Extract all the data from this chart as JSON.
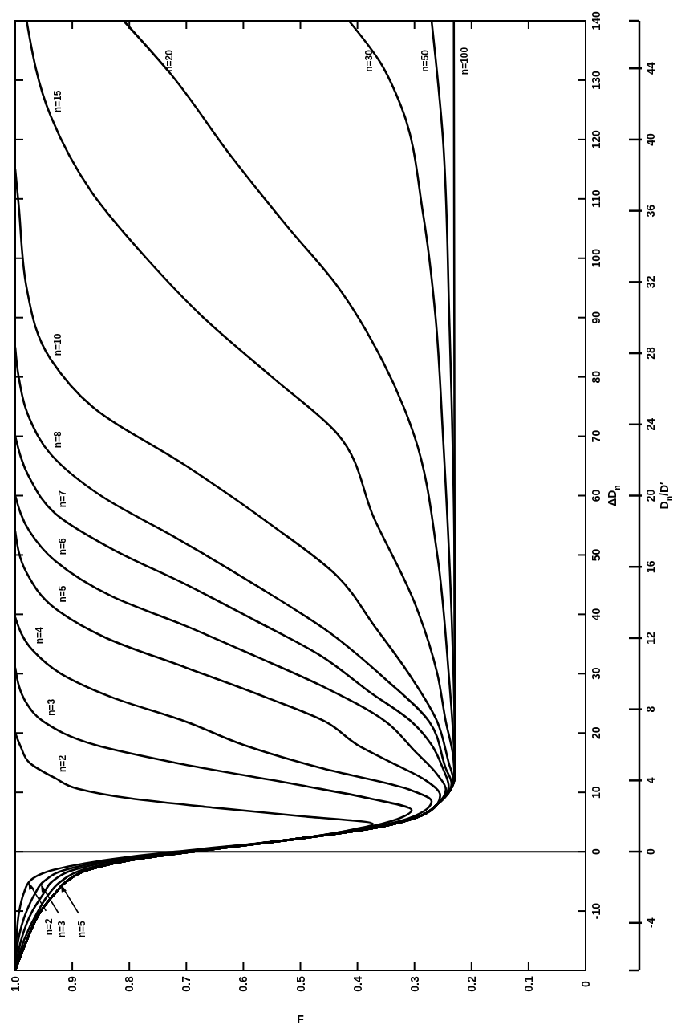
{
  "chart_data": {
    "type": "line",
    "xlabel": "F",
    "ylabel": "ΔD$_{n}$",
    "y2label": "D$_{n}$/D′",
    "xlim": [
      1,
      0
    ],
    "xticks": [
      {
        "value": 1,
        "label": "1.0"
      },
      0.9,
      0.8,
      0.7,
      0.6,
      0.5,
      0.4,
      0.3,
      0.2,
      0.1,
      0
    ],
    "ylim": [
      -20,
      140
    ],
    "yticks": [
      -10,
      0,
      10,
      20,
      30,
      40,
      50,
      60,
      70,
      80,
      90,
      100,
      110,
      120,
      130,
      140
    ],
    "y2lim": [
      -6.67,
      46.67
    ],
    "y2ticks": [
      -4,
      0,
      4,
      8,
      12,
      16,
      20,
      24,
      28,
      32,
      36,
      40,
      44
    ],
    "ref_lines": [
      {
        "axis": "y",
        "value": 0,
        "color": "#000000"
      }
    ],
    "annotations": [
      {
        "text": "n=2",
        "x": 0.977,
        "y": -5.1
      },
      {
        "text": "n=3",
        "x": 0.955,
        "y": -5.5
      },
      {
        "text": "n=5",
        "x": 0.92,
        "y": -5.5
      }
    ],
    "series": [
      {
        "name": "n=2",
        "color": "#000000",
        "values": [
          -20,
          -15,
          -10,
          -7,
          -5,
          -3,
          -1,
          0,
          2,
          3.5,
          4.7,
          6,
          7.4,
          9,
          10.6,
          12.4,
          15,
          17.6,
          20
        ],
        "x": [
          1,
          0.998,
          0.993,
          0.985,
          0.975,
          0.93,
          0.81,
          0.72,
          0.52,
          0.42,
          0.373,
          0.5,
          0.65,
          0.8,
          0.89,
          0.93,
          0.975,
          0.99,
          1
        ]
      },
      {
        "name": "n=3",
        "color": "#000000",
        "values": [
          -20,
          -15,
          -10,
          -7,
          -5,
          -3,
          -1,
          0,
          2,
          4,
          5.5,
          7,
          9,
          11.2,
          15,
          18,
          21.9,
          25,
          31
        ],
        "x": [
          1,
          0.995,
          0.98,
          0.965,
          0.95,
          0.91,
          0.8,
          0.71,
          0.52,
          0.39,
          0.33,
          0.305,
          0.38,
          0.5,
          0.72,
          0.86,
          0.95,
          0.98,
          1
        ]
      },
      {
        "name": "n=4",
        "color": "#000000",
        "values": [
          -20,
          -15,
          -10,
          -7,
          -5,
          -3,
          -1,
          0,
          2,
          4,
          6,
          8.5,
          10.5,
          14,
          18,
          21.9,
          26,
          30,
          34,
          39.5
        ],
        "x": [
          1,
          0.99,
          0.97,
          0.95,
          0.935,
          0.895,
          0.79,
          0.7,
          0.52,
          0.38,
          0.3,
          0.27,
          0.31,
          0.46,
          0.6,
          0.7,
          0.83,
          0.92,
          0.97,
          1
        ]
      },
      {
        "name": "n=5",
        "color": "#000000",
        "values": [
          -20,
          -15,
          -10,
          -7,
          -5,
          -3,
          -1,
          0,
          2,
          4,
          6,
          8,
          9.5,
          12,
          15,
          18,
          21.9,
          26,
          31,
          36,
          41,
          47,
          54
        ],
        "x": [
          1,
          0.985,
          0.96,
          0.94,
          0.92,
          0.88,
          0.78,
          0.7,
          0.52,
          0.37,
          0.29,
          0.26,
          0.255,
          0.28,
          0.34,
          0.4,
          0.456,
          0.56,
          0.7,
          0.84,
          0.93,
          0.98,
          1
        ]
      },
      {
        "name": "n=6",
        "color": "#000000",
        "values": [
          -20,
          -15,
          -10,
          -7,
          -5,
          -3,
          -1,
          0,
          2,
          4,
          6,
          8,
          10.5,
          13,
          17,
          21.9,
          28,
          33,
          38,
          43,
          49,
          54,
          60
        ],
        "x": [
          1,
          0.98,
          0.955,
          0.93,
          0.91,
          0.87,
          0.77,
          0.69,
          0.52,
          0.37,
          0.29,
          0.26,
          0.245,
          0.26,
          0.3,
          0.35,
          0.464,
          0.58,
          0.7,
          0.83,
          0.93,
          0.975,
          1
        ]
      },
      {
        "name": "n=7",
        "color": "#000000",
        "values": [
          -20,
          -15,
          -10,
          -7,
          -5,
          -3,
          -1,
          0,
          2,
          4,
          6,
          8,
          11,
          14,
          18,
          21.9,
          27,
          33,
          39,
          45,
          51,
          57,
          63,
          70
        ],
        "x": [
          1,
          0.98,
          0.955,
          0.93,
          0.91,
          0.87,
          0.77,
          0.69,
          0.52,
          0.37,
          0.29,
          0.26,
          0.24,
          0.25,
          0.27,
          0.305,
          0.38,
          0.464,
          0.58,
          0.7,
          0.83,
          0.93,
          0.975,
          1
        ]
      },
      {
        "name": "n=8",
        "color": "#000000",
        "values": [
          -20,
          -15,
          -10,
          -7,
          -5,
          -3,
          -1,
          0,
          2,
          4,
          6,
          8,
          11.5,
          14,
          21.9,
          29,
          37,
          45,
          53,
          60,
          67,
          73,
          80,
          85
        ],
        "x": [
          1,
          0.98,
          0.955,
          0.93,
          0.91,
          0.87,
          0.77,
          0.69,
          0.52,
          0.37,
          0.29,
          0.26,
          0.235,
          0.245,
          0.274,
          0.35,
          0.45,
          0.58,
          0.72,
          0.85,
          0.938,
          0.975,
          0.994,
          1
        ]
      },
      {
        "name": "n=10",
        "color": "#000000",
        "values": [
          -20,
          -15,
          -10,
          -7,
          -5,
          -3,
          -1,
          0,
          2,
          4,
          6,
          8,
          12,
          15,
          21.9,
          30,
          38,
          46.5,
          55,
          65,
          75,
          83,
          95,
          109,
          115
        ],
        "x": [
          1,
          0.98,
          0.955,
          0.93,
          0.91,
          0.87,
          0.77,
          0.69,
          0.52,
          0.37,
          0.29,
          0.26,
          0.232,
          0.24,
          0.26,
          0.31,
          0.37,
          0.436,
          0.55,
          0.7,
          0.865,
          0.938,
          0.98,
          0.994,
          1
        ]
      },
      {
        "name": "n=15",
        "color": "#000000",
        "values": [
          -20,
          -15,
          -10,
          -7,
          -5,
          -3,
          -1,
          0,
          2,
          4,
          6,
          8,
          12.5,
          16,
          21.9,
          30,
          42,
          56,
          70.5,
          80,
          90,
          100,
          111,
          124,
          140
        ],
        "x": [
          1,
          0.98,
          0.955,
          0.93,
          0.91,
          0.87,
          0.77,
          0.69,
          0.52,
          0.37,
          0.29,
          0.26,
          0.23,
          0.232,
          0.245,
          0.26,
          0.3,
          0.37,
          0.436,
          0.55,
          0.67,
          0.77,
          0.865,
          0.938,
          0.98
        ]
      },
      {
        "name": "n=20",
        "color": "#000000",
        "values": [
          -20,
          -15,
          -10,
          -7,
          -5,
          -3,
          -1,
          0,
          2,
          4,
          6,
          8,
          10,
          13,
          16,
          30,
          50,
          70,
          82.7,
          95.4,
          105,
          117,
          131,
          140
        ],
        "x": [
          1,
          0.98,
          0.955,
          0.93,
          0.91,
          0.87,
          0.77,
          0.69,
          0.52,
          0.37,
          0.29,
          0.26,
          0.24,
          0.229,
          0.23,
          0.24,
          0.26,
          0.3,
          0.356,
          0.436,
          0.52,
          0.62,
          0.727,
          0.81
        ]
      },
      {
        "name": "n=30",
        "color": "#000000",
        "values": [
          -20,
          -15,
          -10,
          -7,
          -5,
          -3,
          -1,
          0,
          2,
          4,
          6,
          8,
          10,
          13,
          16,
          40,
          70,
          90,
          107.5,
          125.5,
          133,
          140
        ],
        "x": [
          1,
          0.98,
          0.955,
          0.93,
          0.91,
          0.87,
          0.77,
          0.69,
          0.52,
          0.37,
          0.29,
          0.26,
          0.24,
          0.229,
          0.229,
          0.235,
          0.25,
          0.263,
          0.285,
          0.323,
          0.36,
          0.415
        ]
      },
      {
        "name": "n=50",
        "color": "#000000",
        "values": [
          -20,
          -15,
          -10,
          -7,
          -5,
          -3,
          -1,
          0,
          2,
          4,
          6,
          8,
          10,
          13,
          50,
          90,
          120,
          140
        ],
        "x": [
          1,
          0.98,
          0.955,
          0.93,
          0.91,
          0.87,
          0.77,
          0.69,
          0.52,
          0.37,
          0.29,
          0.26,
          0.24,
          0.229,
          0.23,
          0.239,
          0.25,
          0.27
        ]
      },
      {
        "name": "n=100",
        "color": "#000000",
        "values": [
          -20,
          -15,
          -10,
          -7,
          -5,
          -3,
          -1,
          0,
          2,
          4,
          6,
          8,
          10,
          13,
          140
        ],
        "x": [
          1,
          0.98,
          0.955,
          0.93,
          0.91,
          0.87,
          0.77,
          0.69,
          0.52,
          0.37,
          0.29,
          0.26,
          0.24,
          0.229,
          0.231
        ]
      }
    ]
  }
}
